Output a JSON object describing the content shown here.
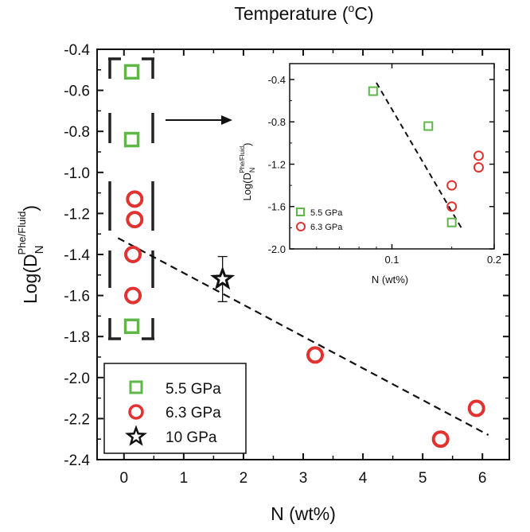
{
  "chart_data": [
    {
      "type": "scatter",
      "title": "",
      "top_axis_label": "Temperature (",
      "top_axis_label_sup": "o",
      "top_axis_label_end": "C)",
      "xlabel": "N (wt%)",
      "ylabel_main": "Log(D",
      "ylabel_sub": "N",
      "ylabel_sup": "Phe/Fluid",
      "ylabel_end": ")",
      "xlim": [
        -0.45,
        6.45
      ],
      "ylim": [
        -2.4,
        -0.4
      ],
      "x_ticks": [
        "0",
        "1",
        "2",
        "3",
        "4",
        "5",
        "6"
      ],
      "y_ticks": [
        "-0.4",
        "-0.6",
        "-0.8",
        "-1.0",
        "-1.2",
        "-1.4",
        "-1.6",
        "-1.8",
        "-2.0",
        "-2.2",
        "-2.4"
      ],
      "legend_position": "bottom-left",
      "series": [
        {
          "name": "5.5 GPa",
          "marker": "square",
          "color": "#5db847",
          "x": [
            0.13,
            0.13,
            0.13
          ],
          "y": [
            -0.51,
            -0.84,
            -1.75
          ]
        },
        {
          "name": "6.3 GPa",
          "marker": "circle",
          "color": "#e0322e",
          "x": [
            0.18,
            0.18,
            0.15,
            0.15,
            3.2,
            5.3,
            5.9
          ],
          "y": [
            -1.13,
            -1.23,
            -1.4,
            -1.6,
            -1.89,
            -2.3,
            -2.15
          ]
        },
        {
          "name": "10 GPa",
          "marker": "star",
          "color": "#111111",
          "x": [
            1.65
          ],
          "y": [
            -1.52
          ],
          "y_error": [
            0.11
          ]
        }
      ],
      "trendline": {
        "style": "dashed",
        "x": [
          -0.1,
          6.1
        ],
        "y": [
          -1.32,
          -2.28
        ]
      }
    },
    {
      "type": "scatter",
      "title": "",
      "xlabel": "N (wt%)",
      "ylabel_main": "Log(D",
      "ylabel_sub": "N",
      "ylabel_sup": "Phe/Fluid",
      "ylabel_end": ")",
      "x_scale": "log",
      "xlim": [
        0.05,
        0.2
      ],
      "ylim": [
        -2.0,
        -0.25
      ],
      "x_ticks": [
        {
          "value": 0.1,
          "label": "0.1"
        },
        {
          "value": 0.2,
          "label": "0.2"
        }
      ],
      "y_ticks": [
        "-0.4",
        "-0.8",
        "-1.2",
        "-1.6",
        "-2.0"
      ],
      "legend_position": "bottom-left",
      "series": [
        {
          "name": "5.5 GPa",
          "marker": "square",
          "color": "#5db847",
          "x": [
            0.088,
            0.128,
            0.15
          ],
          "y": [
            -0.51,
            -0.84,
            -1.75
          ]
        },
        {
          "name": "6.3 GPa",
          "marker": "circle",
          "color": "#e0322e",
          "x": [
            0.15,
            0.15,
            0.18,
            0.18
          ],
          "y": [
            -1.4,
            -1.6,
            -1.12,
            -1.23
          ]
        }
      ],
      "trendline": {
        "style": "dashed",
        "x": [
          0.09,
          0.16
        ],
        "y": [
          -0.43,
          -1.8
        ]
      }
    }
  ]
}
